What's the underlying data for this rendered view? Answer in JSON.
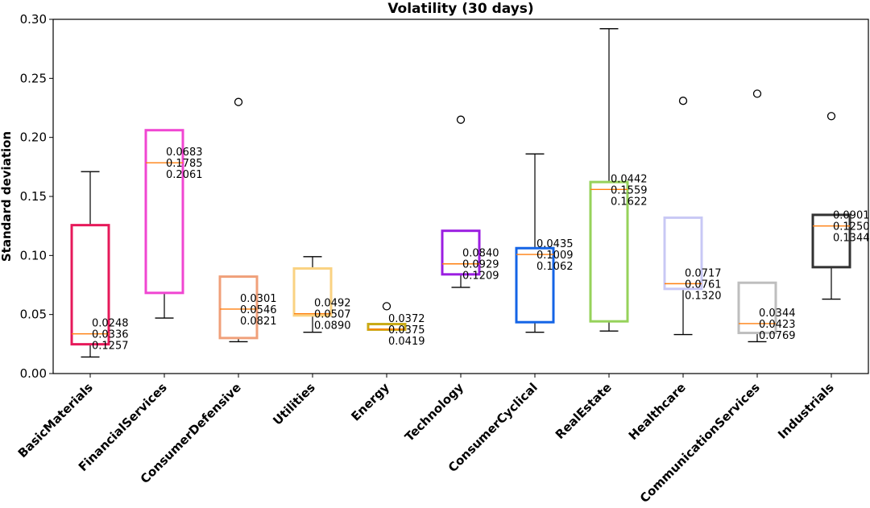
{
  "chart_data": {
    "type": "box",
    "title": "Volatility (30 days)",
    "xlabel": "",
    "ylabel": "Standard deviation",
    "ylim": [
      0,
      0.3
    ],
    "yticks": [
      "0.00",
      "0.05",
      "0.10",
      "0.15",
      "0.20",
      "0.25",
      "0.30"
    ],
    "grid": false,
    "median_color": "#ff7f0e",
    "series": [
      {
        "name": "BasicMaterials",
        "color": "#e6195a",
        "q1": 0.0248,
        "median": 0.0336,
        "q3": 0.1257,
        "whisker_low": 0.014,
        "whisker_high": 0.171,
        "outliers": [],
        "labels": [
          "0.0248",
          "0.0336",
          "0.1257"
        ]
      },
      {
        "name": "FinancialServices",
        "color": "#f046d2",
        "q1": 0.0683,
        "median": 0.1785,
        "q3": 0.2061,
        "whisker_low": 0.047,
        "whisker_high": 0.2061,
        "outliers": [],
        "labels": [
          "0.0683",
          "0.1785",
          "0.2061"
        ]
      },
      {
        "name": "ConsumerDefensive",
        "color": "#f0a07a",
        "q1": 0.0301,
        "median": 0.0546,
        "q3": 0.0821,
        "whisker_low": 0.027,
        "whisker_high": 0.0821,
        "outliers": [
          0.23
        ],
        "labels": [
          "0.0301",
          "0.0546",
          "0.0821"
        ]
      },
      {
        "name": "Utilities",
        "color": "#fad282",
        "q1": 0.0492,
        "median": 0.0507,
        "q3": 0.089,
        "whisker_low": 0.035,
        "whisker_high": 0.099,
        "outliers": [],
        "labels": [
          "0.0492",
          "0.0507",
          "0.0890"
        ]
      },
      {
        "name": "Energy",
        "color": "#c8aa14",
        "q1": 0.0372,
        "median": 0.0375,
        "q3": 0.0419,
        "whisker_low": 0.0372,
        "whisker_high": 0.0419,
        "outliers": [
          0.057
        ],
        "labels": [
          "0.0372",
          "0.0375",
          "0.0419"
        ]
      },
      {
        "name": "Technology",
        "color": "#9b1ee1",
        "q1": 0.084,
        "median": 0.0929,
        "q3": 0.1209,
        "whisker_low": 0.073,
        "whisker_high": 0.1209,
        "outliers": [
          0.215
        ],
        "labels": [
          "0.0840",
          "0.0929",
          "0.1209"
        ]
      },
      {
        "name": "ConsumerCyclical",
        "color": "#1464e6",
        "q1": 0.0435,
        "median": 0.1009,
        "q3": 0.1062,
        "whisker_low": 0.035,
        "whisker_high": 0.186,
        "outliers": [],
        "labels": [
          "0.0435",
          "0.1009",
          "0.1062"
        ]
      },
      {
        "name": "RealEstate",
        "color": "#96d25a",
        "q1": 0.0442,
        "median": 0.1559,
        "q3": 0.1622,
        "whisker_low": 0.036,
        "whisker_high": 0.292,
        "outliers": [],
        "labels": [
          "0.0442",
          "0.1559",
          "0.1622"
        ]
      },
      {
        "name": "Healthcare",
        "color": "#c8c8f5",
        "q1": 0.0717,
        "median": 0.0761,
        "q3": 0.132,
        "whisker_low": 0.033,
        "whisker_high": 0.132,
        "outliers": [
          0.231
        ],
        "labels": [
          "0.0717",
          "0.0761",
          "0.1320"
        ]
      },
      {
        "name": "CommunicationServices",
        "color": "#bebebe",
        "q1": 0.0344,
        "median": 0.0423,
        "q3": 0.0769,
        "whisker_low": 0.027,
        "whisker_high": 0.0769,
        "outliers": [
          0.237
        ],
        "labels": [
          "0.0344",
          "0.0423",
          "0.0769"
        ]
      },
      {
        "name": "Industrials",
        "color": "#323232",
        "q1": 0.0901,
        "median": 0.125,
        "q3": 0.1344,
        "whisker_low": 0.063,
        "whisker_high": 0.1344,
        "outliers": [
          0.218
        ],
        "labels": [
          "0.0901",
          "0.1250",
          "0.1344"
        ]
      }
    ]
  }
}
